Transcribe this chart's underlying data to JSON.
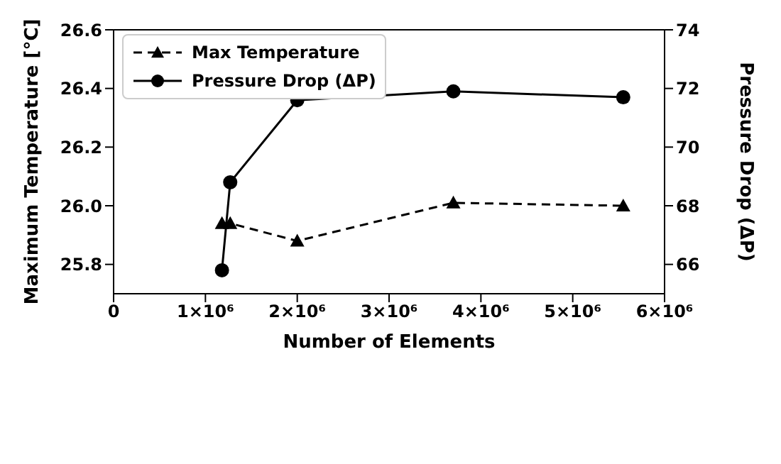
{
  "chart_data": {
    "type": "line",
    "xlabel": "Number of Elements",
    "ylabel": "Maximum Temperature [°C]",
    "y2label": "Pressure Drop (ΔP)",
    "xlim": [
      0,
      6000000
    ],
    "xticks": [
      0,
      {
        "value": 1000000,
        "label": "1×10⁶"
      },
      {
        "value": 2000000,
        "label": "2×10⁶"
      },
      {
        "value": 3000000,
        "label": "3×10⁶"
      },
      {
        "value": 4000000,
        "label": "4×10⁶"
      },
      {
        "value": 5000000,
        "label": "5×10⁶"
      },
      {
        "value": 6000000,
        "label": "6×10⁶"
      }
    ],
    "ylim": [
      25.7,
      26.6
    ],
    "yticks": [
      25.8,
      {
        "value": 26,
        "label": "26.0"
      },
      26.2,
      26.4,
      26.6
    ],
    "y2lim": [
      65,
      74
    ],
    "y2ticks": [
      66,
      68,
      70,
      72,
      74
    ],
    "series": [
      {
        "name": "Max Temperature",
        "color": "#000000",
        "x": [
          1180000,
          1270000,
          2000000,
          3700000,
          5550000
        ],
        "values": [
          25.94,
          25.94,
          25.88,
          26.01,
          26.0
        ],
        "marker": "triangle",
        "line_style": "dashed"
      },
      {
        "name": "Pressure Drop (ΔP)",
        "color": "#000000",
        "axis": "y2",
        "x": [
          1180000,
          1270000,
          2000000,
          3700000,
          5550000
        ],
        "values": [
          65.8,
          68.8,
          71.6,
          71.9,
          71.7
        ],
        "marker": "circle",
        "line_style": "solid"
      }
    ],
    "legend": "top left"
  }
}
